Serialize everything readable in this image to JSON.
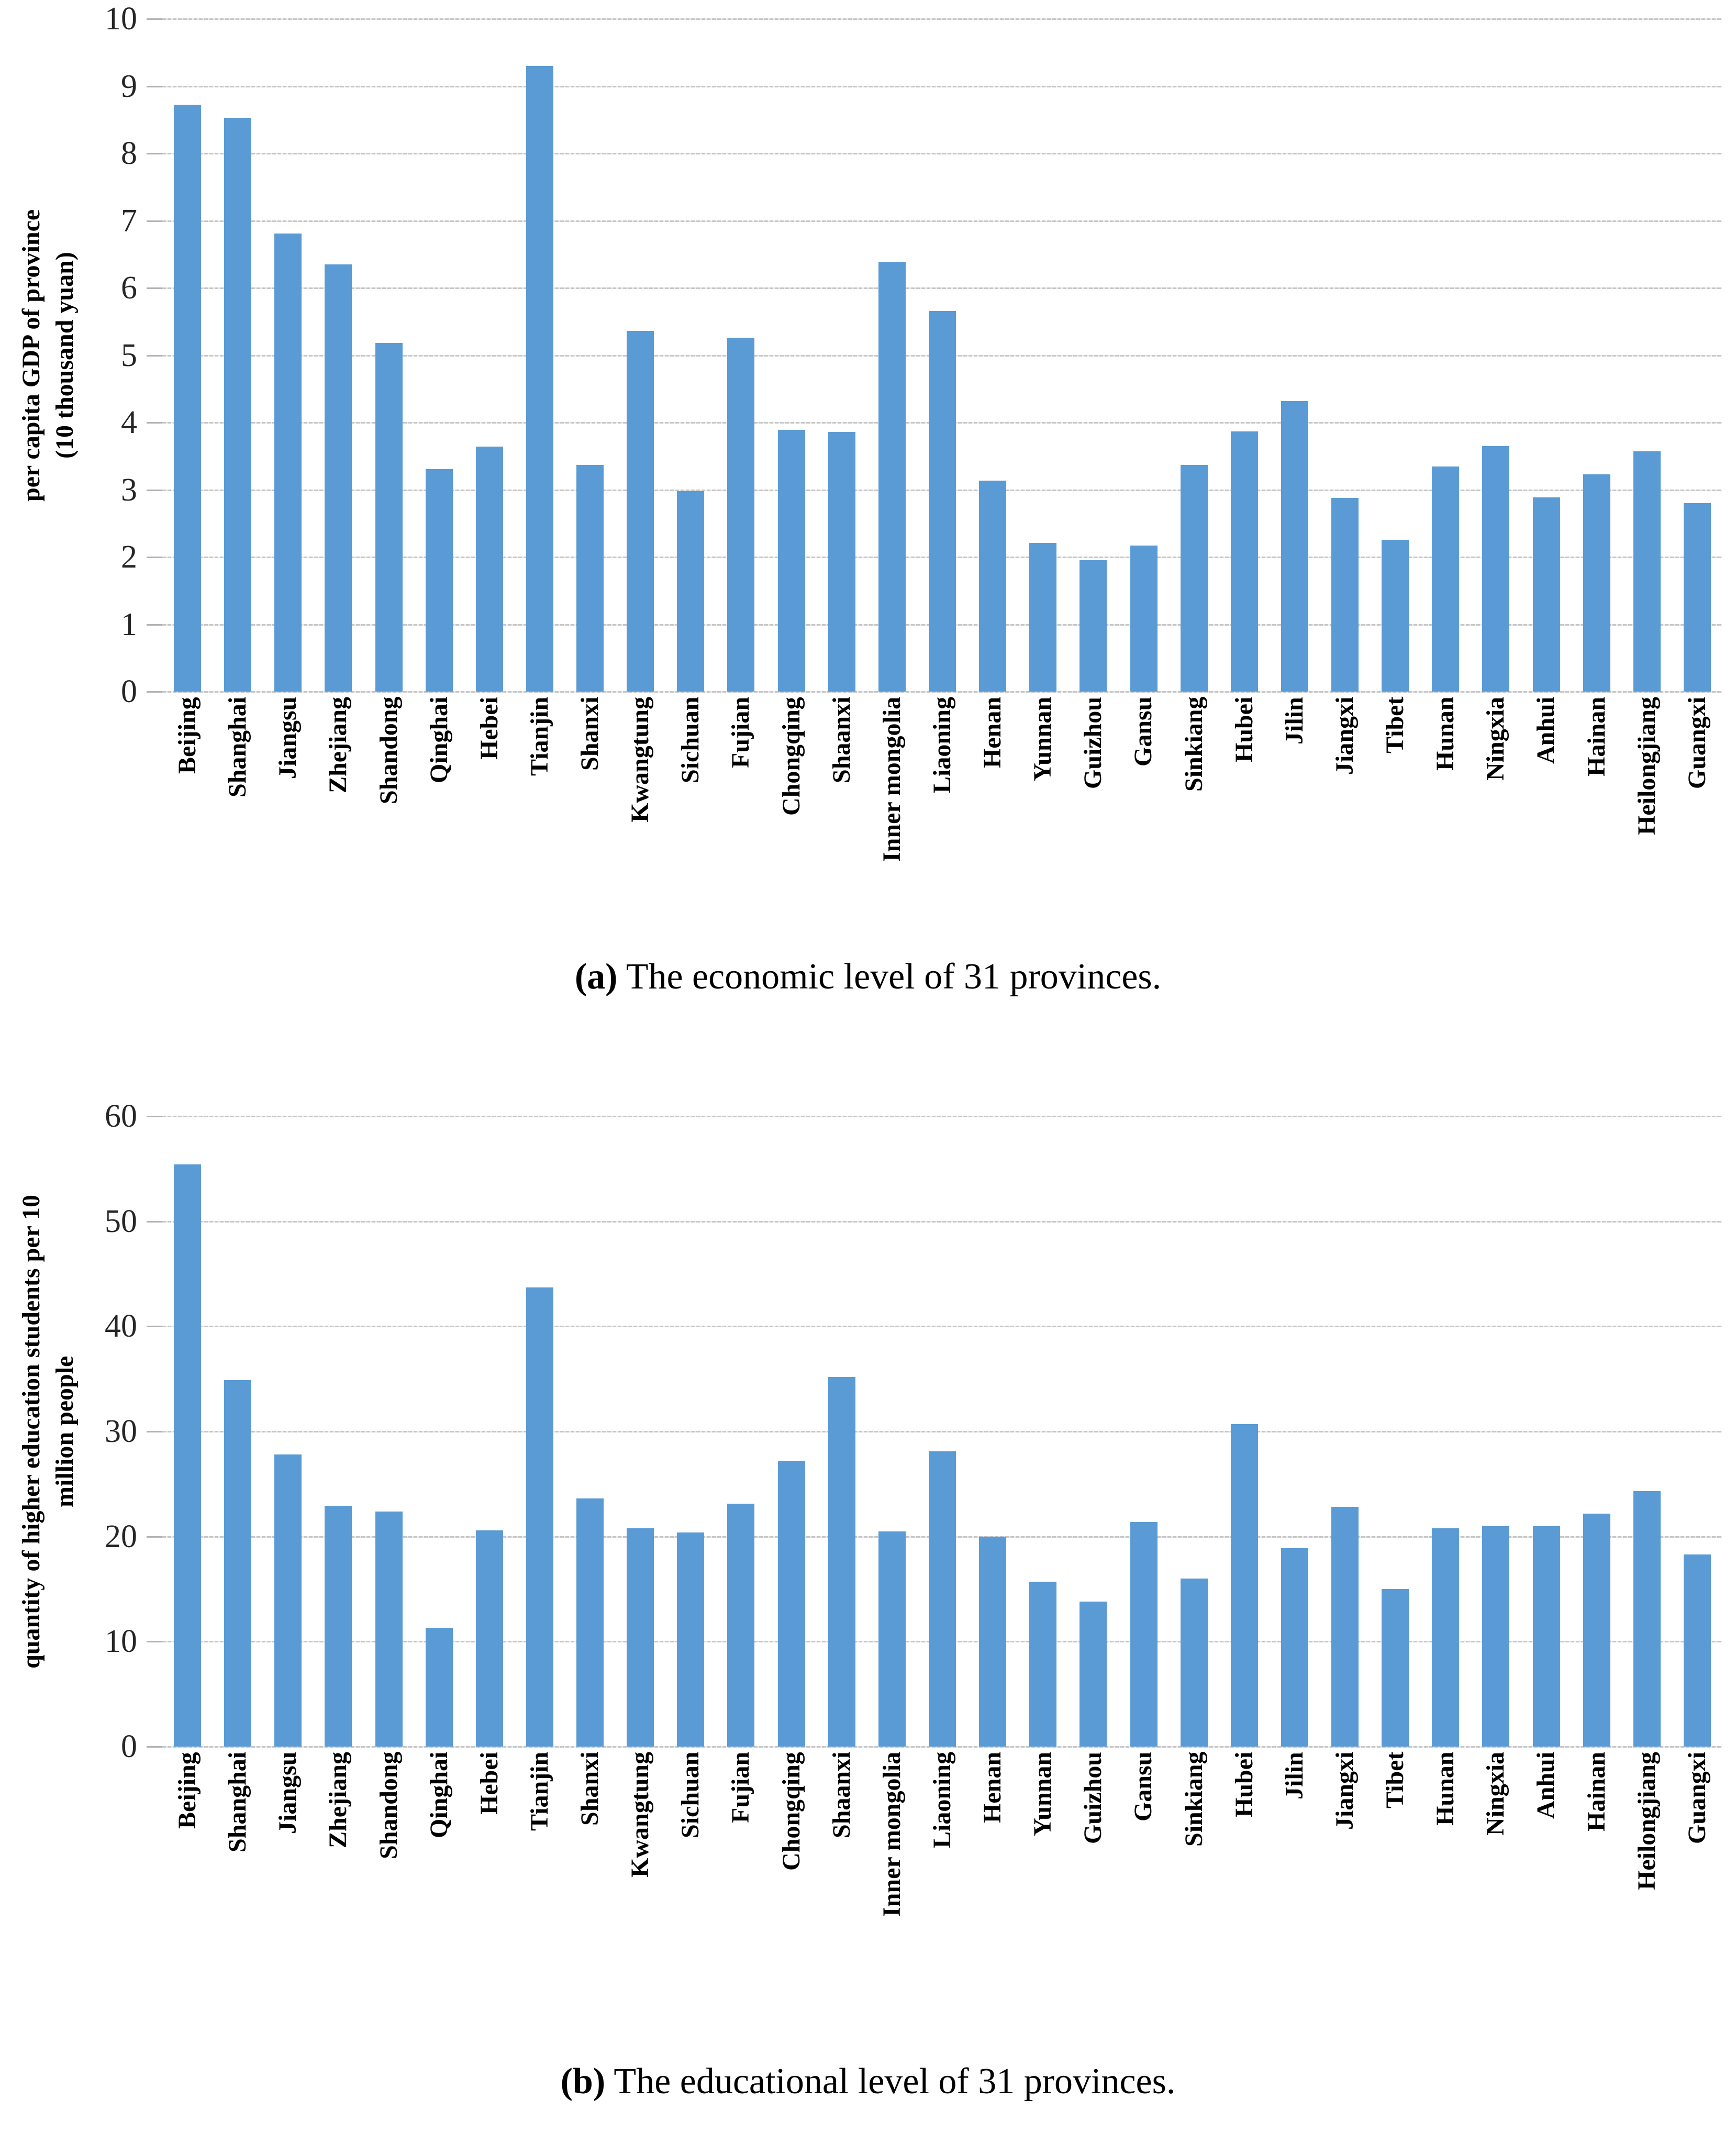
{
  "figure": {
    "bar_color": "#5B9BD5",
    "gridline_color": "#C7C7C7",
    "tick_color": "#B3B3B3",
    "text_color": "#000000"
  },
  "chart_data": [
    {
      "id": "a",
      "type": "bar",
      "caption_label": "(a)",
      "caption_text": " The economic level of 31 provinces.",
      "ylabel_line1": "per capita GDP of province",
      "ylabel_line2": "(10 thousand yuan)",
      "xlabel": "",
      "ylim": [
        0,
        10
      ],
      "yticks": [
        0,
        1,
        2,
        3,
        4,
        5,
        6,
        7,
        8,
        9,
        10
      ],
      "grid": true,
      "legend": "none",
      "categories": [
        "Beijing",
        "Shanghai",
        "Jiangsu",
        "Zhejiang",
        "Shandong",
        "Qinghai",
        "Hebei",
        "Tianjin",
        "Shanxi",
        "Kwangtung",
        "Sichuan",
        "Fujian",
        "Chongqing",
        "Shaanxi",
        "Inner mongolia",
        "Liaoning",
        "Henan",
        "Yunnan",
        "Guizhou",
        "Gansu",
        "Sinkiang",
        "Hubei",
        "Jilin",
        "Jiangxi",
        "Tibet",
        "Hunan",
        "Ningxia",
        "Anhui",
        "Hainan",
        "Heilongjiang",
        "Guangxi"
      ],
      "values": [
        8.72,
        8.53,
        6.81,
        6.35,
        5.18,
        3.31,
        3.64,
        9.3,
        3.37,
        5.36,
        2.98,
        5.26,
        3.89,
        3.86,
        6.39,
        5.66,
        3.14,
        2.21,
        1.95,
        2.17,
        3.37,
        3.87,
        4.32,
        2.88,
        2.26,
        3.35,
        3.65,
        2.89,
        3.23,
        3.57,
        2.8
      ]
    },
    {
      "id": "b",
      "type": "bar",
      "caption_label": "(b)",
      "caption_text": " The educational level of 31 provinces.",
      "ylabel_line1": "quantity of higher education students per 10",
      "ylabel_line2": "million people",
      "xlabel": "",
      "ylim": [
        0,
        60
      ],
      "yticks": [
        0,
        10,
        20,
        30,
        40,
        50,
        60
      ],
      "grid": true,
      "legend": "none",
      "categories": [
        "Beijing",
        "Shanghai",
        "Jiangsu",
        "Zhejiang",
        "Shandong",
        "Qinghai",
        "Hebei",
        "Tianjin",
        "Shanxi",
        "Kwangtung",
        "Sichuan",
        "Fujian",
        "Chongqing",
        "Shaanxi",
        "Inner mongolia",
        "Liaoning",
        "Henan",
        "Yunnan",
        "Guizhou",
        "Gansu",
        "Sinkiang",
        "Hubei",
        "Jilin",
        "Jiangxi",
        "Tibet",
        "Hunan",
        "Ningxia",
        "Anhui",
        "Hainan",
        "Heilongjiang",
        "Guangxi"
      ],
      "values": [
        55.4,
        34.9,
        27.8,
        22.9,
        22.4,
        11.3,
        20.6,
        43.7,
        23.6,
        20.8,
        20.4,
        23.1,
        27.2,
        35.2,
        20.5,
        28.1,
        20.0,
        15.7,
        13.8,
        21.4,
        16.0,
        30.7,
        18.9,
        22.8,
        15.0,
        20.8,
        21.0,
        21.0,
        22.2,
        24.3,
        18.3
      ]
    }
  ]
}
